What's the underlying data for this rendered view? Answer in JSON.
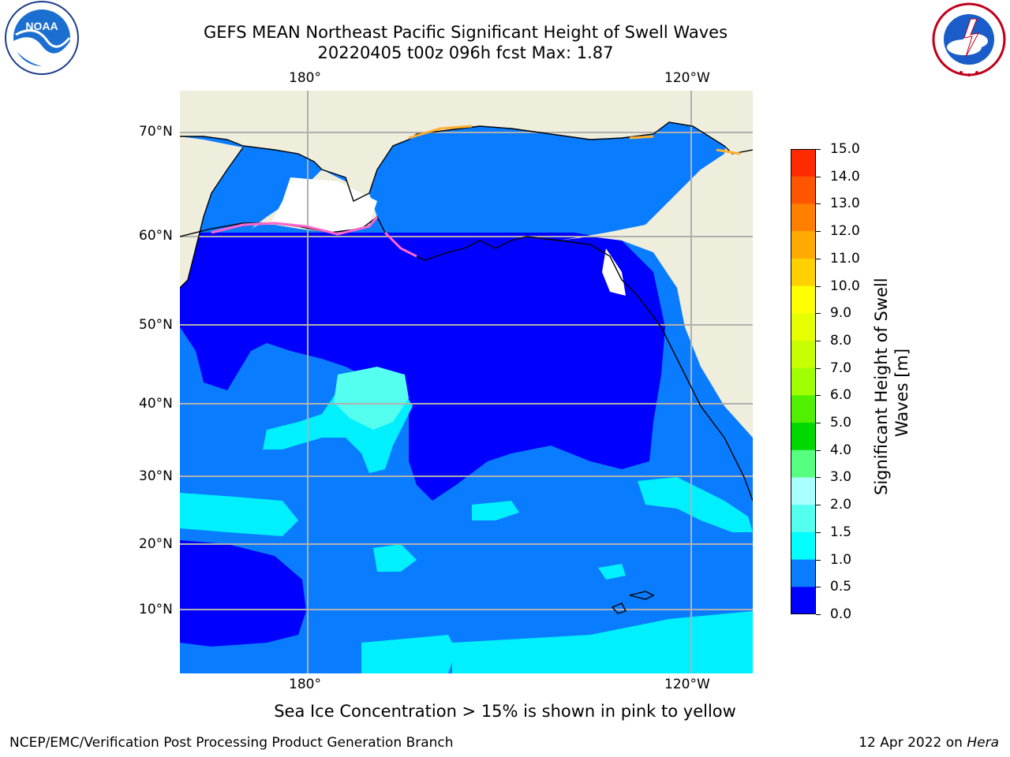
{
  "title": {
    "line1": "GEFS MEAN Northeast Pacific Significant Height of Swell Waves",
    "line2": "20220405 t00z 096h fcst   Max: 1.87"
  },
  "map": {
    "lon_labels_top": [
      "180°",
      "120°W"
    ],
    "lon_labels_bottom": [
      "180°",
      "120°W"
    ],
    "lat_labels": [
      "70°N",
      "60°N",
      "50°N",
      "40°N",
      "30°N",
      "20°N",
      "10°N"
    ],
    "colors": {
      "land": "#efeddc",
      "ocean_0_0_5": "#0000ff",
      "ocean_0_5_1_0": "#0a7cff",
      "ocean_1_0_1_5": "#00f0ff",
      "ocean_1_5_2_0": "#55fff0",
      "ice": "#ffffff",
      "grid": "#b0b0b0",
      "coast": "#000000"
    }
  },
  "colorbar": {
    "label": "Significant Height of Swell Waves [m]",
    "label_line1": "Significant Height of Swell",
    "label_line2": "Waves [m]",
    "ticks": [
      "15.0",
      "14.0",
      "13.0",
      "12.0",
      "11.0",
      "10.0",
      "9.0",
      "8.0",
      "7.0",
      "6.0",
      "5.0",
      "4.0",
      "3.0",
      "2.0",
      "1.5",
      "1.0",
      "0.5",
      "0.0"
    ],
    "colors_top_to_bottom": [
      "#ff0000",
      "#ff2a00",
      "#ff5500",
      "#ff8000",
      "#ffaa00",
      "#ffd000",
      "#ffff00",
      "#e8ff00",
      "#c8ff00",
      "#a0ff00",
      "#50f000",
      "#00d800",
      "#55ff80",
      "#aaffff",
      "#55fff0",
      "#00ffff",
      "#0a7cff",
      "#0000ff"
    ]
  },
  "notes": {
    "sea_ice": "Sea Ice Concentration > 15% is shown in pink to yellow"
  },
  "footer": {
    "left": "NCEP/EMC/Verification Post Processing Product Generation Branch",
    "right_date": "12 Apr 2022 on ",
    "right_machine": "Hera"
  },
  "logos": {
    "noaa": "NOAA",
    "nws": "NATIONAL WEATHER SERVICE"
  }
}
